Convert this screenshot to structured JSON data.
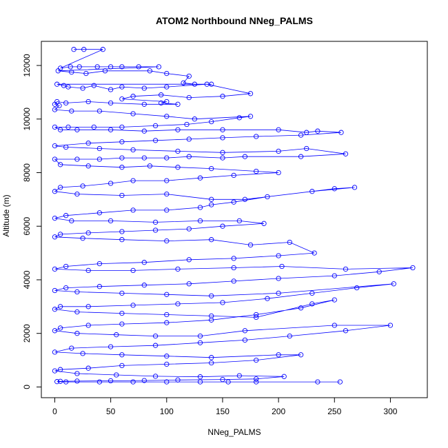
{
  "chart_data": {
    "type": "scatter",
    "title": "ATOM2 Northbound NNeg_PALMS",
    "xlabel": "NNeg_PALMS",
    "ylabel": "Altitude (m)",
    "xlim": [
      -12,
      333
    ],
    "ylim": [
      -400,
      12900
    ],
    "x_ticks": [
      0,
      50,
      100,
      150,
      200,
      250,
      300
    ],
    "y_ticks": [
      0,
      2000,
      4000,
      6000,
      8000,
      10000,
      12000
    ],
    "grid": false,
    "legend": "none",
    "series_color": "#0000ff",
    "marker": "open-circle",
    "connected": true,
    "series": [
      {
        "values": [
          [
            17,
            12600
          ],
          [
            26,
            12600
          ],
          [
            43,
            12600
          ],
          [
            5,
            11900
          ],
          [
            14,
            11950
          ],
          [
            22,
            11950
          ],
          [
            38,
            11950
          ],
          [
            50,
            11950
          ],
          [
            60,
            11950
          ],
          [
            75,
            11950
          ],
          [
            93,
            11950
          ],
          [
            3,
            11800
          ],
          [
            15,
            11750
          ],
          [
            28,
            11700
          ],
          [
            45,
            11800
          ],
          [
            85,
            11800
          ],
          [
            100,
            11700
          ],
          [
            120,
            11600
          ],
          [
            115,
            11350
          ],
          [
            125,
            11300
          ],
          [
            140,
            11300
          ],
          [
            2,
            11300
          ],
          [
            8,
            11250
          ],
          [
            12,
            11200
          ],
          [
            25,
            11150
          ],
          [
            35,
            11250
          ],
          [
            50,
            11100
          ],
          [
            60,
            11200
          ],
          [
            80,
            11150
          ],
          [
            100,
            11200
          ],
          [
            136,
            11300
          ],
          [
            175,
            10950
          ],
          [
            150,
            10850
          ],
          [
            120,
            10800
          ],
          [
            95,
            10900
          ],
          [
            70,
            10850
          ],
          [
            60,
            10750
          ],
          [
            100,
            10650
          ],
          [
            95,
            10600
          ],
          [
            110,
            10550
          ],
          [
            80,
            10550
          ],
          [
            50,
            10600
          ],
          [
            30,
            10650
          ],
          [
            10,
            10600
          ],
          [
            2,
            10650
          ],
          [
            0,
            10550
          ],
          [
            4,
            10500
          ],
          [
            0,
            10350
          ],
          [
            15,
            10300
          ],
          [
            40,
            10300
          ],
          [
            70,
            10200
          ],
          [
            100,
            10100
          ],
          [
            125,
            10000
          ],
          [
            175,
            10100
          ],
          [
            165,
            10050
          ],
          [
            140,
            9900
          ],
          [
            118,
            9800
          ],
          [
            90,
            9750
          ],
          [
            60,
            9700
          ],
          [
            35,
            9700
          ],
          [
            12,
            9700
          ],
          [
            0,
            9700
          ],
          [
            5,
            9600
          ],
          [
            20,
            9600
          ],
          [
            50,
            9600
          ],
          [
            80,
            9550
          ],
          [
            110,
            9600
          ],
          [
            150,
            9600
          ],
          [
            200,
            9600
          ],
          [
            225,
            9500
          ],
          [
            235,
            9550
          ],
          [
            256,
            9500
          ],
          [
            220,
            9400
          ],
          [
            180,
            9350
          ],
          [
            150,
            9300
          ],
          [
            120,
            9250
          ],
          [
            90,
            9200
          ],
          [
            60,
            9150
          ],
          [
            30,
            9100
          ],
          [
            0,
            9000
          ],
          [
            10,
            8950
          ],
          [
            40,
            8900
          ],
          [
            70,
            8850
          ],
          [
            110,
            8800
          ],
          [
            150,
            8750
          ],
          [
            200,
            8800
          ],
          [
            225,
            8900
          ],
          [
            260,
            8700
          ],
          [
            220,
            8600
          ],
          [
            170,
            8600
          ],
          [
            150,
            8550
          ],
          [
            120,
            8600
          ],
          [
            100,
            8550
          ],
          [
            80,
            8550
          ],
          [
            60,
            8550
          ],
          [
            40,
            8500
          ],
          [
            20,
            8500
          ],
          [
            0,
            8500
          ],
          [
            5,
            8300
          ],
          [
            30,
            8250
          ],
          [
            60,
            8200
          ],
          [
            85,
            8250
          ],
          [
            110,
            8200
          ],
          [
            140,
            8150
          ],
          [
            180,
            8050
          ],
          [
            200,
            8000
          ],
          [
            160,
            7900
          ],
          [
            130,
            7800
          ],
          [
            100,
            7700
          ],
          [
            70,
            7700
          ],
          [
            50,
            7600
          ],
          [
            25,
            7500
          ],
          [
            5,
            7450
          ],
          [
            0,
            7300
          ],
          [
            20,
            7200
          ],
          [
            60,
            7150
          ],
          [
            100,
            7200
          ],
          [
            140,
            7000
          ],
          [
            170,
            7000
          ],
          [
            250,
            7400
          ],
          [
            268,
            7450
          ],
          [
            230,
            7300
          ],
          [
            190,
            7100
          ],
          [
            160,
            6900
          ],
          [
            140,
            6800
          ],
          [
            130,
            6700
          ],
          [
            100,
            6600
          ],
          [
            70,
            6600
          ],
          [
            40,
            6500
          ],
          [
            10,
            6400
          ],
          [
            0,
            6300
          ],
          [
            15,
            6200
          ],
          [
            50,
            6200
          ],
          [
            90,
            6150
          ],
          [
            130,
            6200
          ],
          [
            165,
            6200
          ],
          [
            187,
            6100
          ],
          [
            150,
            6000
          ],
          [
            120,
            5900
          ],
          [
            90,
            5850
          ],
          [
            60,
            5800
          ],
          [
            30,
            5750
          ],
          [
            5,
            5700
          ],
          [
            0,
            5600
          ],
          [
            25,
            5550
          ],
          [
            60,
            5500
          ],
          [
            100,
            5450
          ],
          [
            140,
            5500
          ],
          [
            175,
            5300
          ],
          [
            210,
            5400
          ],
          [
            232,
            5000
          ],
          [
            200,
            4900
          ],
          [
            160,
            4800
          ],
          [
            120,
            4750
          ],
          [
            80,
            4650
          ],
          [
            40,
            4600
          ],
          [
            10,
            4500
          ],
          [
            0,
            4400
          ],
          [
            30,
            4350
          ],
          [
            70,
            4350
          ],
          [
            110,
            4400
          ],
          [
            160,
            4450
          ],
          [
            203,
            4500
          ],
          [
            260,
            4400
          ],
          [
            320,
            4450
          ],
          [
            290,
            4300
          ],
          [
            250,
            4150
          ],
          [
            200,
            4050
          ],
          [
            160,
            3950
          ],
          [
            120,
            3850
          ],
          [
            80,
            3800
          ],
          [
            40,
            3750
          ],
          [
            10,
            3700
          ],
          [
            0,
            3600
          ],
          [
            20,
            3550
          ],
          [
            60,
            3500
          ],
          [
            100,
            3450
          ],
          [
            140,
            3400
          ],
          [
            200,
            3500
          ],
          [
            303,
            3850
          ],
          [
            270,
            3700
          ],
          [
            230,
            3500
          ],
          [
            190,
            3300
          ],
          [
            150,
            3150
          ],
          [
            110,
            3100
          ],
          [
            70,
            3050
          ],
          [
            30,
            3000
          ],
          [
            5,
            3000
          ],
          [
            0,
            2900
          ],
          [
            20,
            2800
          ],
          [
            60,
            2750
          ],
          [
            100,
            2700
          ],
          [
            140,
            2650
          ],
          [
            180,
            2600
          ],
          [
            230,
            3100
          ],
          [
            250,
            3250
          ],
          [
            220,
            2950
          ],
          [
            180,
            2700
          ],
          [
            140,
            2500
          ],
          [
            100,
            2400
          ],
          [
            60,
            2350
          ],
          [
            30,
            2300
          ],
          [
            5,
            2200
          ],
          [
            0,
            2100
          ],
          [
            20,
            2000
          ],
          [
            55,
            1950
          ],
          [
            90,
            1900
          ],
          [
            130,
            1900
          ],
          [
            170,
            2100
          ],
          [
            250,
            2300
          ],
          [
            300,
            2300
          ],
          [
            260,
            2100
          ],
          [
            210,
            1900
          ],
          [
            170,
            1750
          ],
          [
            130,
            1650
          ],
          [
            90,
            1550
          ],
          [
            50,
            1500
          ],
          [
            15,
            1450
          ],
          [
            0,
            1300
          ],
          [
            25,
            1250
          ],
          [
            60,
            1200
          ],
          [
            100,
            1150
          ],
          [
            140,
            1100
          ],
          [
            200,
            1200
          ],
          [
            220,
            1200
          ],
          [
            180,
            1000
          ],
          [
            140,
            900
          ],
          [
            100,
            850
          ],
          [
            60,
            800
          ],
          [
            30,
            700
          ],
          [
            5,
            650
          ],
          [
            0,
            600
          ],
          [
            20,
            500
          ],
          [
            55,
            450
          ],
          [
            90,
            400
          ],
          [
            130,
            380
          ],
          [
            165,
            420
          ],
          [
            205,
            390
          ],
          [
            180,
            300
          ],
          [
            150,
            280
          ],
          [
            110,
            260
          ],
          [
            80,
            240
          ],
          [
            50,
            230
          ],
          [
            20,
            220
          ],
          [
            5,
            210
          ],
          [
            2,
            200
          ],
          [
            10,
            190
          ],
          [
            40,
            190
          ],
          [
            70,
            190
          ],
          [
            100,
            190
          ],
          [
            130,
            190
          ],
          [
            155,
            190
          ],
          [
            180,
            190
          ],
          [
            235,
            190
          ],
          [
            255,
            190
          ]
        ]
      }
    ]
  }
}
